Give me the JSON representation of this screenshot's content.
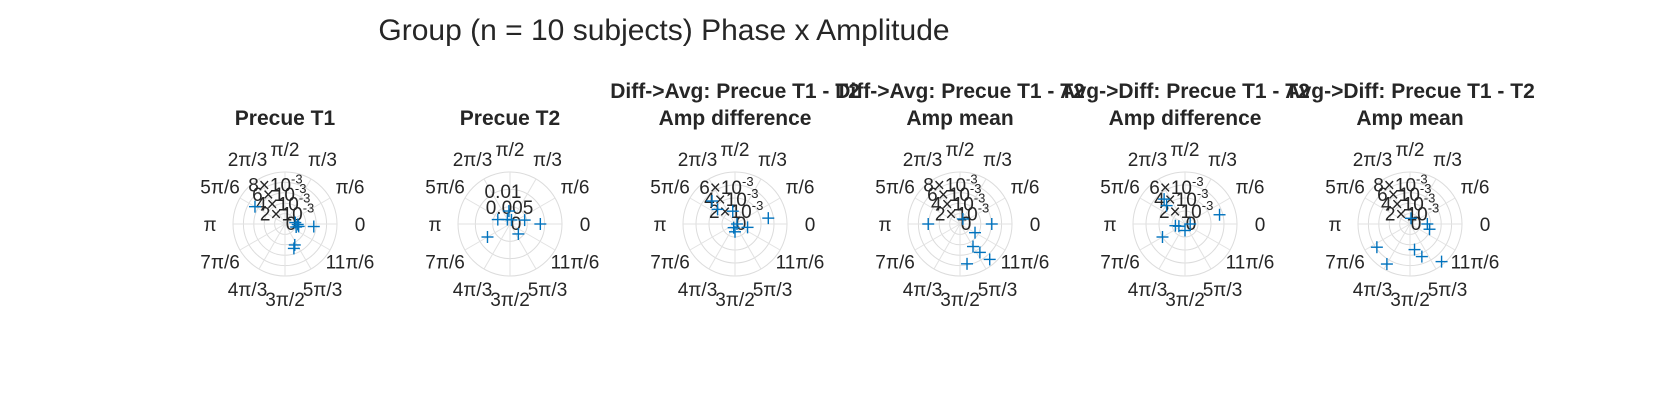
{
  "title": "Group (n = 10 subjects) Phase x Amplitude",
  "colors": {
    "marker": "#0072BD",
    "grid": "#dcdcdc",
    "text": "#262626"
  },
  "theta_labels": [
    "0",
    "π/6",
    "π/3",
    "π/2",
    "2π/3",
    "5π/6",
    "π",
    "7π/6",
    "4π/3",
    "3π/2",
    "5π/3",
    "11π/6"
  ],
  "chart_data": [
    {
      "type": "polar_scatter",
      "title_lines": [
        "Precue T1"
      ],
      "rlim": [
        0,
        0.009
      ],
      "r_ticks": [
        {
          "m": "0",
          "e": ""
        },
        {
          "m": "2×10",
          "e": "-3"
        },
        {
          "m": "4×10",
          "e": "-3"
        },
        {
          "m": "6×10",
          "e": "-3"
        },
        {
          "m": "8×10",
          "e": "-3"
        }
      ],
      "marker": "+",
      "points": [
        {
          "theta_deg": 150,
          "r": 0.006
        },
        {
          "theta_deg": 8,
          "r": 0.0018
        },
        {
          "theta_deg": 358,
          "r": 0.0022
        },
        {
          "theta_deg": 350,
          "r": 0.0024
        },
        {
          "theta_deg": 345,
          "r": 0.002
        },
        {
          "theta_deg": 355,
          "r": 0.005
        },
        {
          "theta_deg": 290,
          "r": 0.0045
        },
        {
          "theta_deg": 295,
          "r": 0.004
        }
      ]
    },
    {
      "type": "polar_scatter",
      "title_lines": [
        "Precue T2"
      ],
      "rlim": [
        0,
        0.012
      ],
      "r_ticks": [
        {
          "m": "0",
          "e": ""
        },
        {
          "m": "0.005",
          "e": ""
        },
        {
          "m": "0.01",
          "e": ""
        }
      ],
      "marker": "+",
      "points": [
        {
          "theta_deg": 95,
          "r": 0.003
        },
        {
          "theta_deg": 160,
          "r": 0.003
        },
        {
          "theta_deg": 15,
          "r": 0.0035
        },
        {
          "theta_deg": 0,
          "r": 0.007
        },
        {
          "theta_deg": 210,
          "r": 0.006
        },
        {
          "theta_deg": 310,
          "r": 0.003
        },
        {
          "theta_deg": 120,
          "r": 0.0012
        },
        {
          "theta_deg": 70,
          "r": 0.001
        }
      ]
    },
    {
      "type": "polar_scatter",
      "title_lines": [
        "Diff->Avg: Precue T1 - T2",
        "Amp difference"
      ],
      "rlim": [
        0,
        0.008
      ],
      "r_ticks": [
        {
          "m": "0",
          "e": ""
        },
        {
          "m": "2×10",
          "e": "-3"
        },
        {
          "m": "4×10",
          "e": "-3"
        },
        {
          "m": "6×10",
          "e": "-3"
        }
      ],
      "marker": "+",
      "points": [
        {
          "theta_deg": 135,
          "r": 0.005
        },
        {
          "theta_deg": 140,
          "r": 0.0035
        },
        {
          "theta_deg": 10,
          "r": 0.0052
        },
        {
          "theta_deg": 345,
          "r": 0.002
        },
        {
          "theta_deg": 0,
          "r": 0.0003
        },
        {
          "theta_deg": 270,
          "r": 0.0012
        },
        {
          "theta_deg": 250,
          "r": 0.0006
        },
        {
          "theta_deg": 100,
          "r": 0.002
        }
      ]
    },
    {
      "type": "polar_scatter",
      "title_lines": [
        "Diff->Avg: Precue T1 - T2",
        "Amp mean"
      ],
      "rlim": [
        0,
        0.009
      ],
      "r_ticks": [
        {
          "m": "0",
          "e": ""
        },
        {
          "m": "2×10",
          "e": "-3"
        },
        {
          "m": "4×10",
          "e": "-3"
        },
        {
          "m": "6×10",
          "e": "-3"
        },
        {
          "m": "8×10",
          "e": "-3"
        }
      ],
      "marker": "+",
      "points": [
        {
          "theta_deg": 180,
          "r": 0.0055
        },
        {
          "theta_deg": 0,
          "r": 0.0055
        },
        {
          "theta_deg": 300,
          "r": 0.0045
        },
        {
          "theta_deg": 305,
          "r": 0.006
        },
        {
          "theta_deg": 310,
          "r": 0.008
        },
        {
          "theta_deg": 280,
          "r": 0.007
        },
        {
          "theta_deg": 60,
          "r": 0.001
        },
        {
          "theta_deg": 330,
          "r": 0.003
        }
      ]
    },
    {
      "type": "polar_scatter",
      "title_lines": [
        "Avg->Diff: Precue T1 - T2",
        "Amp difference"
      ],
      "rlim": [
        0,
        0.008
      ],
      "r_ticks": [
        {
          "m": "0",
          "e": ""
        },
        {
          "m": "2×10",
          "e": "-3"
        },
        {
          "m": "4×10",
          "e": "-3"
        },
        {
          "m": "6×10",
          "e": "-3"
        }
      ],
      "marker": "+",
      "points": [
        {
          "theta_deg": 130,
          "r": 0.005
        },
        {
          "theta_deg": 135,
          "r": 0.004
        },
        {
          "theta_deg": 15,
          "r": 0.0055
        },
        {
          "theta_deg": 210,
          "r": 0.004
        },
        {
          "theta_deg": 190,
          "r": 0.0015
        },
        {
          "theta_deg": 0,
          "r": 0.0008
        },
        {
          "theta_deg": 270,
          "r": 0.001
        },
        {
          "theta_deg": 200,
          "r": 0.001
        }
      ]
    },
    {
      "type": "polar_scatter",
      "title_lines": [
        "Avg->Diff: Precue T1 - T2",
        "Amp mean"
      ],
      "rlim": [
        0,
        0.009
      ],
      "r_ticks": [
        {
          "m": "0",
          "e": ""
        },
        {
          "m": "2×10",
          "e": "-3"
        },
        {
          "m": "4×10",
          "e": "-3"
        },
        {
          "m": "6×10",
          "e": "-3"
        },
        {
          "m": "8×10",
          "e": "-3"
        }
      ],
      "marker": "+",
      "points": [
        {
          "theta_deg": 215,
          "r": 0.007
        },
        {
          "theta_deg": 240,
          "r": 0.008
        },
        {
          "theta_deg": 280,
          "r": 0.0045
        },
        {
          "theta_deg": 290,
          "r": 0.006
        },
        {
          "theta_deg": 310,
          "r": 0.0085
        },
        {
          "theta_deg": 345,
          "r": 0.0035
        },
        {
          "theta_deg": 0,
          "r": 0.003
        },
        {
          "theta_deg": 80,
          "r": 0.001
        }
      ]
    }
  ]
}
